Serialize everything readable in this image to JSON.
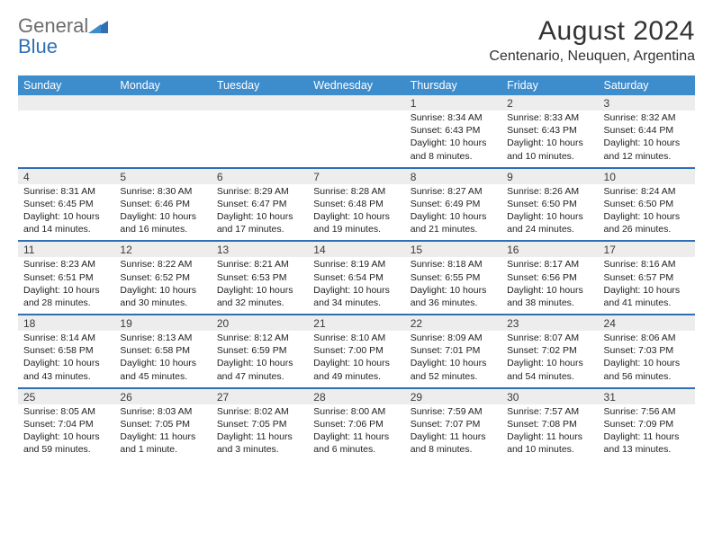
{
  "logo": {
    "gray": "General",
    "blue": "Blue"
  },
  "title": "August 2024",
  "location": "Centenario, Neuquen, Argentina",
  "colors": {
    "header_bg": "#3d8ccc",
    "border": "#2f6fb3",
    "stripe": "#ededed",
    "text": "#222222"
  },
  "dayNames": [
    "Sunday",
    "Monday",
    "Tuesday",
    "Wednesday",
    "Thursday",
    "Friday",
    "Saturday"
  ],
  "weeks": [
    [
      null,
      null,
      null,
      null,
      {
        "d": "1",
        "sr": "8:34 AM",
        "ss": "6:43 PM",
        "dl": "10 hours and 8 minutes."
      },
      {
        "d": "2",
        "sr": "8:33 AM",
        "ss": "6:43 PM",
        "dl": "10 hours and 10 minutes."
      },
      {
        "d": "3",
        "sr": "8:32 AM",
        "ss": "6:44 PM",
        "dl": "10 hours and 12 minutes."
      }
    ],
    [
      {
        "d": "4",
        "sr": "8:31 AM",
        "ss": "6:45 PM",
        "dl": "10 hours and 14 minutes."
      },
      {
        "d": "5",
        "sr": "8:30 AM",
        "ss": "6:46 PM",
        "dl": "10 hours and 16 minutes."
      },
      {
        "d": "6",
        "sr": "8:29 AM",
        "ss": "6:47 PM",
        "dl": "10 hours and 17 minutes."
      },
      {
        "d": "7",
        "sr": "8:28 AM",
        "ss": "6:48 PM",
        "dl": "10 hours and 19 minutes."
      },
      {
        "d": "8",
        "sr": "8:27 AM",
        "ss": "6:49 PM",
        "dl": "10 hours and 21 minutes."
      },
      {
        "d": "9",
        "sr": "8:26 AM",
        "ss": "6:50 PM",
        "dl": "10 hours and 24 minutes."
      },
      {
        "d": "10",
        "sr": "8:24 AM",
        "ss": "6:50 PM",
        "dl": "10 hours and 26 minutes."
      }
    ],
    [
      {
        "d": "11",
        "sr": "8:23 AM",
        "ss": "6:51 PM",
        "dl": "10 hours and 28 minutes."
      },
      {
        "d": "12",
        "sr": "8:22 AM",
        "ss": "6:52 PM",
        "dl": "10 hours and 30 minutes."
      },
      {
        "d": "13",
        "sr": "8:21 AM",
        "ss": "6:53 PM",
        "dl": "10 hours and 32 minutes."
      },
      {
        "d": "14",
        "sr": "8:19 AM",
        "ss": "6:54 PM",
        "dl": "10 hours and 34 minutes."
      },
      {
        "d": "15",
        "sr": "8:18 AM",
        "ss": "6:55 PM",
        "dl": "10 hours and 36 minutes."
      },
      {
        "d": "16",
        "sr": "8:17 AM",
        "ss": "6:56 PM",
        "dl": "10 hours and 38 minutes."
      },
      {
        "d": "17",
        "sr": "8:16 AM",
        "ss": "6:57 PM",
        "dl": "10 hours and 41 minutes."
      }
    ],
    [
      {
        "d": "18",
        "sr": "8:14 AM",
        "ss": "6:58 PM",
        "dl": "10 hours and 43 minutes."
      },
      {
        "d": "19",
        "sr": "8:13 AM",
        "ss": "6:58 PM",
        "dl": "10 hours and 45 minutes."
      },
      {
        "d": "20",
        "sr": "8:12 AM",
        "ss": "6:59 PM",
        "dl": "10 hours and 47 minutes."
      },
      {
        "d": "21",
        "sr": "8:10 AM",
        "ss": "7:00 PM",
        "dl": "10 hours and 49 minutes."
      },
      {
        "d": "22",
        "sr": "8:09 AM",
        "ss": "7:01 PM",
        "dl": "10 hours and 52 minutes."
      },
      {
        "d": "23",
        "sr": "8:07 AM",
        "ss": "7:02 PM",
        "dl": "10 hours and 54 minutes."
      },
      {
        "d": "24",
        "sr": "8:06 AM",
        "ss": "7:03 PM",
        "dl": "10 hours and 56 minutes."
      }
    ],
    [
      {
        "d": "25",
        "sr": "8:05 AM",
        "ss": "7:04 PM",
        "dl": "10 hours and 59 minutes."
      },
      {
        "d": "26",
        "sr": "8:03 AM",
        "ss": "7:05 PM",
        "dl": "11 hours and 1 minute."
      },
      {
        "d": "27",
        "sr": "8:02 AM",
        "ss": "7:05 PM",
        "dl": "11 hours and 3 minutes."
      },
      {
        "d": "28",
        "sr": "8:00 AM",
        "ss": "7:06 PM",
        "dl": "11 hours and 6 minutes."
      },
      {
        "d": "29",
        "sr": "7:59 AM",
        "ss": "7:07 PM",
        "dl": "11 hours and 8 minutes."
      },
      {
        "d": "30",
        "sr": "7:57 AM",
        "ss": "7:08 PM",
        "dl": "11 hours and 10 minutes."
      },
      {
        "d": "31",
        "sr": "7:56 AM",
        "ss": "7:09 PM",
        "dl": "11 hours and 13 minutes."
      }
    ]
  ]
}
